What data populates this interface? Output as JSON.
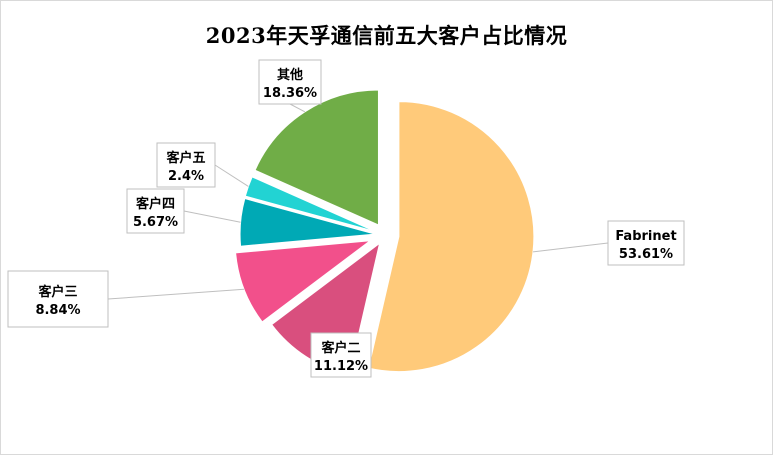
{
  "chart_data": {
    "type": "pie",
    "title": "2023年天孚通信前五大客户占比情况",
    "categories": [
      "Fabrinet",
      "客户二",
      "客户三",
      "客户四",
      "客户五",
      "其他"
    ],
    "values": [
      53.61,
      11.12,
      8.84,
      5.67,
      2.4,
      18.36
    ],
    "value_labels": [
      "53.61%",
      "11.12%",
      "8.84%",
      "5.67%",
      "2.4%",
      "18.36%"
    ],
    "colors": [
      "#FFCA7A",
      "#D94F7E",
      "#F2508B",
      "#00A9B5",
      "#22D3D3",
      "#70AD47"
    ],
    "unit": "%",
    "legend": "none",
    "exploded": true
  }
}
